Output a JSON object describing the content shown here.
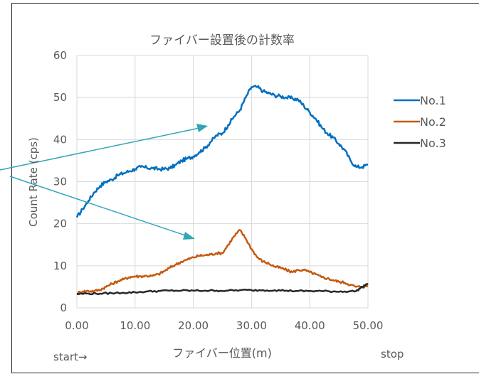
{
  "chart_data": {
    "type": "line",
    "title": "ファイバー設置後の計数率",
    "xlabel": "ファイバー位置(m)",
    "ylabel": "Count Rate (cps)",
    "xlim": [
      0,
      50
    ],
    "ylim": [
      0,
      60
    ],
    "x_ticks": [
      "0.00",
      "10.00",
      "20.00",
      "30.00",
      "40.00",
      "50.00"
    ],
    "y_ticks": [
      "0",
      "10",
      "20",
      "30",
      "40",
      "50",
      "60"
    ],
    "grid": "vertical and horizontal",
    "legend_position": "right",
    "series": [
      {
        "name": "No.1",
        "color": "#0070C0",
        "points": [
          [
            0,
            21.5
          ],
          [
            1,
            23.5
          ],
          [
            2,
            25.5
          ],
          [
            3,
            27.5
          ],
          [
            4,
            29
          ],
          [
            5,
            30
          ],
          [
            6,
            30.5
          ],
          [
            7,
            31.5
          ],
          [
            8,
            32
          ],
          [
            9,
            32.5
          ],
          [
            10,
            33
          ],
          [
            11,
            33.5
          ],
          [
            12,
            33.3
          ],
          [
            13,
            33.2
          ],
          [
            14,
            33
          ],
          [
            15,
            33
          ],
          [
            16,
            33.2
          ],
          [
            17,
            34
          ],
          [
            18,
            35
          ],
          [
            19,
            35.5
          ],
          [
            20,
            36
          ],
          [
            21,
            37
          ],
          [
            22,
            38
          ],
          [
            23,
            39.5
          ],
          [
            24,
            41
          ],
          [
            25,
            41.5
          ],
          [
            26,
            43.5
          ],
          [
            27,
            45.5
          ],
          [
            28,
            47
          ],
          [
            29,
            50
          ],
          [
            30,
            52.5
          ],
          [
            31,
            52.5
          ],
          [
            32,
            51.5
          ],
          [
            33,
            51
          ],
          [
            34,
            50.5
          ],
          [
            35,
            50.3
          ],
          [
            36,
            50
          ],
          [
            37,
            49.8
          ],
          [
            38,
            49.5
          ],
          [
            39,
            48
          ],
          [
            40,
            46.5
          ],
          [
            41,
            45
          ],
          [
            42,
            43
          ],
          [
            43,
            41.5
          ],
          [
            44,
            40.5
          ],
          [
            45,
            39
          ],
          [
            46,
            37.5
          ],
          [
            47,
            35
          ],
          [
            48,
            33.5
          ],
          [
            49,
            33.5
          ],
          [
            50,
            34
          ]
        ]
      },
      {
        "name": "No.2",
        "color": "#C55A11",
        "points": [
          [
            0,
            3.5
          ],
          [
            1,
            3.9
          ],
          [
            2,
            4
          ],
          [
            3,
            4
          ],
          [
            4,
            4.3
          ],
          [
            5,
            5
          ],
          [
            6,
            5.7
          ],
          [
            7,
            6.3
          ],
          [
            8,
            6.8
          ],
          [
            9,
            7.3
          ],
          [
            10,
            7.5
          ],
          [
            11,
            7.5
          ],
          [
            12,
            7.6
          ],
          [
            13,
            7.6
          ],
          [
            14,
            8
          ],
          [
            15,
            8.7
          ],
          [
            16,
            9.6
          ],
          [
            17,
            10.3
          ],
          [
            18,
            11
          ],
          [
            19,
            11.5
          ],
          [
            20,
            12
          ],
          [
            21,
            12.4
          ],
          [
            22,
            12.5
          ],
          [
            23,
            12.7
          ],
          [
            24,
            13
          ],
          [
            25,
            13
          ],
          [
            26,
            15
          ],
          [
            27,
            17
          ],
          [
            28,
            18.5
          ],
          [
            29,
            16.5
          ],
          [
            30,
            14
          ],
          [
            31,
            12
          ],
          [
            32,
            11
          ],
          [
            33,
            10.5
          ],
          [
            34,
            9.8
          ],
          [
            35,
            9.5
          ],
          [
            36,
            9
          ],
          [
            37,
            8.5
          ],
          [
            38,
            9
          ],
          [
            39,
            9
          ],
          [
            40,
            8.5
          ],
          [
            41,
            8
          ],
          [
            42,
            7.3
          ],
          [
            43,
            7
          ],
          [
            44,
            6.6
          ],
          [
            45,
            6.2
          ],
          [
            46,
            6
          ],
          [
            47,
            5.5
          ],
          [
            48,
            5
          ],
          [
            49,
            5
          ],
          [
            50,
            5.2
          ]
        ]
      },
      {
        "name": "No.3",
        "color": "#262626",
        "points": [
          [
            0,
            3.3
          ],
          [
            2,
            3.4
          ],
          [
            4,
            3.4
          ],
          [
            6,
            3.5
          ],
          [
            8,
            3.6
          ],
          [
            10,
            3.7
          ],
          [
            12,
            3.9
          ],
          [
            14,
            4
          ],
          [
            16,
            4.1
          ],
          [
            18,
            4.1
          ],
          [
            20,
            4.1
          ],
          [
            22,
            4.1
          ],
          [
            24,
            4.1
          ],
          [
            26,
            4.1
          ],
          [
            28,
            4.2
          ],
          [
            30,
            4.2
          ],
          [
            32,
            4.2
          ],
          [
            34,
            4.2
          ],
          [
            36,
            4.1
          ],
          [
            38,
            4
          ],
          [
            40,
            4
          ],
          [
            42,
            4
          ],
          [
            44,
            3.9
          ],
          [
            46,
            3.9
          ],
          [
            48,
            4
          ],
          [
            49,
            5
          ],
          [
            50,
            5.8
          ]
        ]
      }
    ],
    "annotations": {
      "start_label": "start→",
      "stop_label": "stop"
    }
  }
}
